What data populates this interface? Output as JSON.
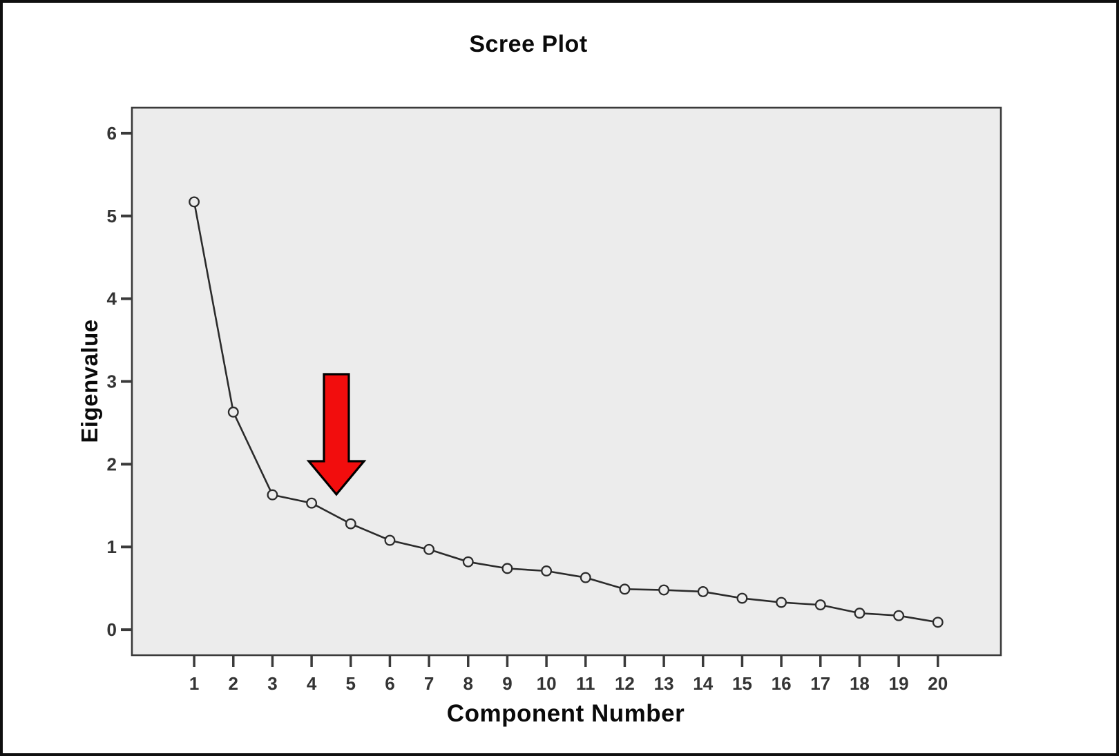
{
  "figure": {
    "title": "Scree Plot",
    "x_axis_title": "Component Number",
    "y_axis_title": "Eigenvalue"
  },
  "chart_data": {
    "type": "line",
    "title": "Scree Plot",
    "xlabel": "Component Number",
    "ylabel": "Eigenvalue",
    "x": [
      1,
      2,
      3,
      4,
      5,
      6,
      7,
      8,
      9,
      10,
      11,
      12,
      13,
      14,
      15,
      16,
      17,
      18,
      19,
      20
    ],
    "y": [
      5.17,
      2.63,
      1.63,
      1.53,
      1.28,
      1.08,
      0.97,
      0.82,
      0.74,
      0.71,
      0.63,
      0.49,
      0.48,
      0.46,
      0.38,
      0.33,
      0.3,
      0.2,
      0.17,
      0.09
    ],
    "x_tick_labels": [
      "1",
      "2",
      "3",
      "4",
      "5",
      "6",
      "7",
      "8",
      "9",
      "10",
      "11",
      "12",
      "13",
      "14",
      "15",
      "16",
      "17",
      "18",
      "19",
      "20"
    ],
    "y_ticks": [
      0,
      1,
      2,
      3,
      4,
      5,
      6
    ],
    "y_tick_labels": [
      "0",
      "1",
      "2",
      "3",
      "4",
      "5",
      "6"
    ],
    "xlim": [
      -0.59,
      21.61
    ],
    "ylim": [
      -0.308,
      6.308
    ],
    "grid": false,
    "legend": "none",
    "marker": "open-circle",
    "colors": {
      "line": "#2b2b2b",
      "marker_stroke": "#2b2b2b",
      "plot_background": "#ececec",
      "plot_border": "#3a3a3a",
      "tick": "#3a3a3a",
      "text": "#0a0a0a"
    },
    "annotation": {
      "shape": "down-arrow",
      "fill": "#f20d0d",
      "outline": "#000000",
      "points_between_components": "4-5"
    }
  }
}
